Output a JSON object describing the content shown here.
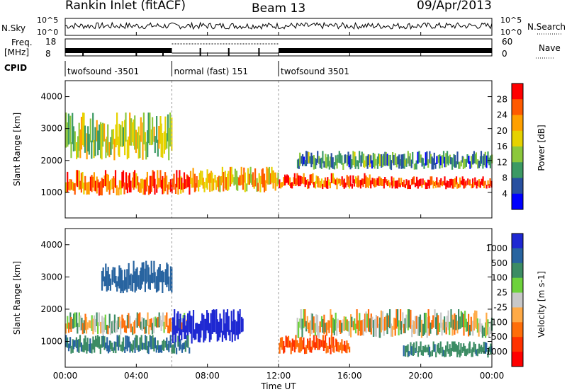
{
  "header": {
    "station": "Rankin Inlet (fitACF)",
    "beam": "Beam 13",
    "date": "09/Apr/2013"
  },
  "strip_labels": {
    "nsky": "N.Sky",
    "nsky_top": "10^5",
    "nsky_bottom": "10^0",
    "nsearch": "N.Search",
    "nsearch_top": "10^5",
    "nsearch_bottom": "10^0",
    "freq_line1": "Freq.",
    "freq_line2": "[MHz]",
    "freq_top": "18",
    "freq_bottom": "8",
    "nave": "Nave",
    "nave_top": "60",
    "nave_bottom": "0",
    "cpid": "CPID"
  },
  "cpid_segments": [
    {
      "label": "twofsound -3501",
      "start_h": 0,
      "end_h": 6
    },
    {
      "label": "normal (fast) 151",
      "start_h": 6,
      "end_h": 12
    },
    {
      "label": "twofsound 3501",
      "start_h": 12,
      "end_h": 24
    }
  ],
  "power_scale": {
    "title": "Power [dB]",
    "ticks": [
      "28",
      "24",
      "20",
      "16",
      "12",
      "8",
      "4"
    ],
    "colors": [
      "#ff0000",
      "#ff5a00",
      "#ffa000",
      "#e6d200",
      "#8cc83c",
      "#3c9a64",
      "#2850a0",
      "#0000ff"
    ]
  },
  "velocity_scale": {
    "title": "Velocity [m s-1]",
    "ticks": [
      "1000",
      "500",
      "100",
      "25",
      "-25",
      "-100",
      "-500",
      "-1000"
    ],
    "colors": [
      "#1e28d2",
      "#2864a0",
      "#3c8c64",
      "#6ed23c",
      "#c8c8c8",
      "#ffaa46",
      "#ff6e0a",
      "#ff3200",
      "#ff0000"
    ]
  },
  "chart_data": [
    {
      "type": "heatmap",
      "name": "Power",
      "ylabel": "Slant Range [km]",
      "y_ticks": [
        1000,
        2000,
        3000,
        4000
      ],
      "ylim": [
        200,
        4500
      ],
      "xlim": [
        0,
        24
      ],
      "bands": [
        {
          "t0": 0,
          "t1": 7,
          "r0": 900,
          "r1": 1700,
          "value": 26
        },
        {
          "t0": 7,
          "t1": 12,
          "r0": 1000,
          "r1": 1800,
          "value": 20
        },
        {
          "t0": 12,
          "t1": 18,
          "r0": 1100,
          "r1": 1600,
          "value": 26
        },
        {
          "t0": 18,
          "t1": 24,
          "r0": 1100,
          "r1": 1500,
          "value": 28
        },
        {
          "t0": 0,
          "t1": 6,
          "r0": 2000,
          "r1": 3500,
          "value": 16
        },
        {
          "t0": 13,
          "t1": 24,
          "r0": 1700,
          "r1": 2300,
          "value": 10
        }
      ]
    },
    {
      "type": "heatmap",
      "name": "Velocity",
      "ylabel": "Slant Range [km]",
      "xlabel": "Time UT",
      "x_ticks": [
        "00:00",
        "04:00",
        "08:00",
        "12:00",
        "16:00",
        "20:00",
        "00:00"
      ],
      "y_ticks": [
        1000,
        2000,
        3000,
        4000
      ],
      "ylim": [
        200,
        4500
      ],
      "xlim": [
        0,
        24
      ],
      "bands": [
        {
          "t0": 0,
          "t1": 7,
          "r0": 1200,
          "r1": 1900,
          "value": 0
        },
        {
          "t0": 0,
          "t1": 7,
          "r0": 600,
          "r1": 1200,
          "value": 300
        },
        {
          "t0": 6,
          "t1": 10,
          "r0": 900,
          "r1": 2000,
          "value": 900
        },
        {
          "t0": 2,
          "t1": 6,
          "r0": 2500,
          "r1": 3500,
          "value": 500
        },
        {
          "t0": 12,
          "t1": 16,
          "r0": 600,
          "r1": 1200,
          "value": -300
        },
        {
          "t0": 13,
          "t1": 24,
          "r0": 1100,
          "r1": 2000,
          "value": 0
        },
        {
          "t0": 19,
          "t1": 24,
          "r0": 500,
          "r1": 1000,
          "value": 200
        }
      ]
    }
  ]
}
